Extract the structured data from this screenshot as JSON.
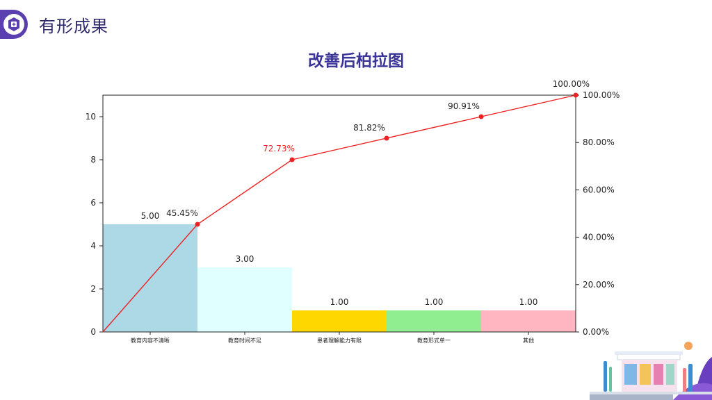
{
  "header": {
    "title": "有形成果",
    "icon": "hexagon-badge-icon",
    "accent": "#5b3fb0"
  },
  "chart_data": {
    "type": "bar",
    "title": "改善后柏拉图",
    "categories": [
      "教育内容不清晰",
      "教育时间不足",
      "患者理解能力有限",
      "教育形式单一",
      "其他"
    ],
    "values": [
      5,
      3,
      1,
      1,
      1
    ],
    "value_labels": [
      "5.00",
      "3.00",
      "1.00",
      "1.00",
      "1.00"
    ],
    "bar_colors": [
      "#add8e6",
      "#e0ffff",
      "#ffd700",
      "#90ee90",
      "#ffb6c1"
    ],
    "ylim": [
      0,
      11
    ],
    "yticks": [
      0,
      2,
      4,
      6,
      8,
      10
    ],
    "series": [
      {
        "type": "line",
        "color": "#ee2222",
        "x": [
          "",
          "教育内容不清晰",
          "教育时间不足",
          "患者理解能力有限",
          "教育形式单一",
          "其他"
        ],
        "values": [
          0,
          45.45,
          72.73,
          81.82,
          90.91,
          100.0
        ],
        "point_labels": [
          "",
          "45.45%",
          "72.73%",
          "81.82%",
          "90.91%",
          "100.00%"
        ]
      }
    ],
    "y2lim": [
      0,
      100
    ],
    "y2ticks": [
      "0.00%",
      "20.00%",
      "40.00%",
      "60.00%",
      "80.00%",
      "100.00%"
    ],
    "grid": false
  }
}
